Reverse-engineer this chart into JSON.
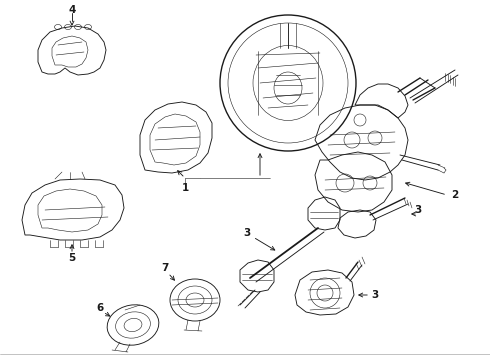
{
  "background_color": "#ffffff",
  "line_color": "#1a1a1a",
  "fig_width": 4.9,
  "fig_height": 3.6,
  "dpi": 100,
  "lw_thick": 1.0,
  "lw_med": 0.65,
  "lw_thin": 0.4,
  "label_fontsize": 7.5,
  "arrow_lw": 0.7
}
